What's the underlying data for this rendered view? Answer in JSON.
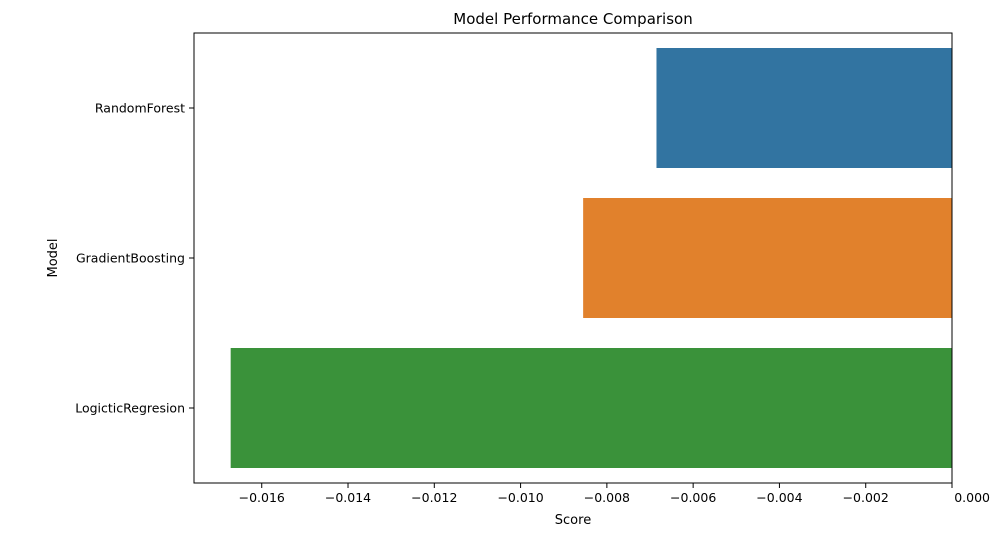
{
  "chart_data": {
    "type": "bar",
    "orientation": "horizontal",
    "title": "Model Performance Comparison",
    "xlabel": "Score",
    "ylabel": "Model",
    "categories": [
      "RandomForest",
      "GradientBoosting",
      "LogicticRegresion"
    ],
    "values": [
      -0.00685,
      -0.00855,
      -0.01672
    ],
    "colors": [
      "#3274a1",
      "#e1812c",
      "#3a923a"
    ],
    "xlim": [
      -0.01757,
      0.0
    ],
    "x_ticks": [
      -0.016,
      -0.014,
      -0.012,
      -0.01,
      -0.008,
      -0.006,
      -0.004,
      -0.002,
      0.0
    ],
    "x_tick_labels": [
      "−0.016",
      "−0.014",
      "−0.012",
      "−0.010",
      "−0.008",
      "−0.006",
      "−0.004",
      "−0.002",
      "0.000"
    ],
    "grid": false,
    "legend": "none"
  }
}
